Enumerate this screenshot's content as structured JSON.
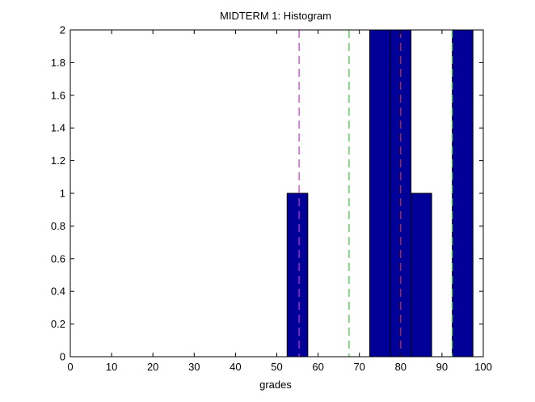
{
  "chart_data": {
    "type": "bar",
    "title": "MIDTERM 1: Histogram",
    "xlabel": "grades",
    "ylabel": "",
    "xlim": [
      0,
      100
    ],
    "ylim": [
      0,
      2
    ],
    "grid": false,
    "bin_width": 5,
    "bins": [
      {
        "center": 55,
        "count": 1
      },
      {
        "center": 75,
        "count": 2
      },
      {
        "center": 80,
        "count": 2
      },
      {
        "center": 85,
        "count": 1
      },
      {
        "center": 95,
        "count": 2
      }
    ],
    "bar_color": "#000099",
    "x_ticks": [
      0,
      10,
      20,
      30,
      40,
      50,
      60,
      70,
      80,
      90,
      100
    ],
    "y_ticks": [
      0,
      0.2,
      0.4,
      0.6,
      0.8,
      1,
      1.2,
      1.4,
      1.6,
      1.8,
      2
    ],
    "x_tick_labels": [
      "0",
      "10",
      "20",
      "30",
      "40",
      "50",
      "60",
      "70",
      "80",
      "90",
      "100"
    ],
    "y_tick_labels": [
      "0",
      "0.2",
      "0.4",
      "0.6",
      "0.8",
      "1",
      "1.2",
      "1.4",
      "1.6",
      "1.8",
      "2"
    ],
    "reference_lines": [
      {
        "x": 55.4,
        "color": "#cc33cc",
        "style": "dashed"
      },
      {
        "x": 67.5,
        "color": "#33cc33",
        "style": "dashed"
      },
      {
        "x": 80.0,
        "color": "#cc3333",
        "style": "dashed"
      },
      {
        "x": 92.5,
        "color": "#33cc33",
        "style": "dashed"
      }
    ]
  }
}
